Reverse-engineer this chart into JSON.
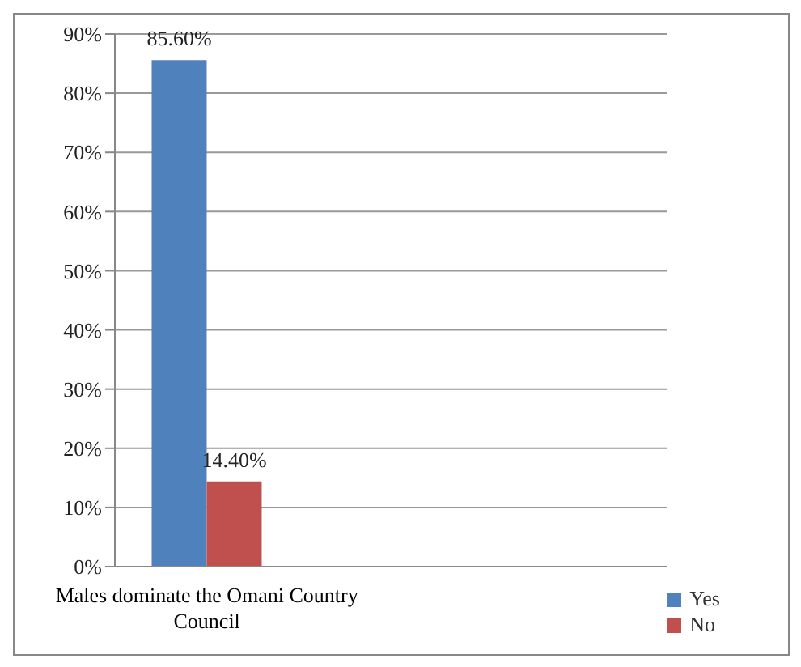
{
  "chart_data": {
    "type": "bar",
    "categories": [
      "Males dominate the Omani Country Council",
      null,
      null
    ],
    "series": [
      {
        "name": "Yes",
        "color": "#4f81bd",
        "values": [
          85.6,
          null,
          null
        ],
        "value_labels": [
          "85.60%",
          null,
          null
        ]
      },
      {
        "name": "No",
        "color": "#c0504d",
        "values": [
          14.4,
          null,
          null
        ],
        "value_labels": [
          "14.40%",
          null,
          null
        ]
      }
    ],
    "ylim": [
      0,
      90
    ],
    "yticks": [
      {
        "value": 0,
        "label": "0%"
      },
      {
        "value": 10,
        "label": "10%"
      },
      {
        "value": 20,
        "label": "20%"
      },
      {
        "value": 30,
        "label": "30%"
      },
      {
        "value": 40,
        "label": "40%"
      },
      {
        "value": 50,
        "label": "50%"
      },
      {
        "value": 60,
        "label": "60%"
      },
      {
        "value": 70,
        "label": "70%"
      },
      {
        "value": 80,
        "label": "80%"
      },
      {
        "value": 90,
        "label": "90%"
      }
    ],
    "grid": "y",
    "legend": "bottom right"
  }
}
